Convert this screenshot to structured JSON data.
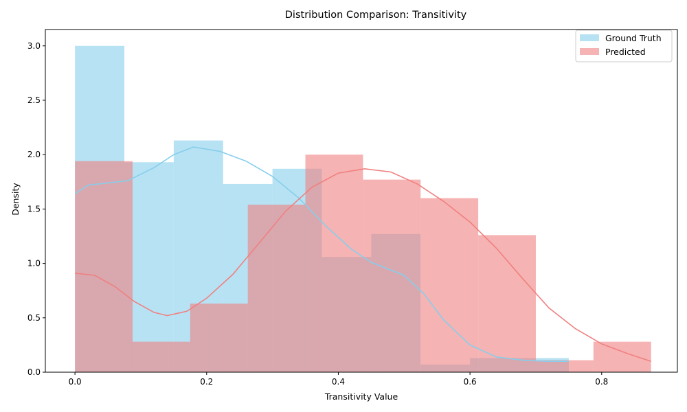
{
  "chart_data": {
    "type": "histogram",
    "title": "Distribution Comparison: Transitivity",
    "xlabel": "Transitivity Value",
    "ylabel": "Density",
    "xlim": [
      -0.045,
      0.915
    ],
    "ylim": [
      0,
      3.15
    ],
    "xticks": [
      0.0,
      0.2,
      0.4,
      0.6,
      0.8
    ],
    "xtick_labels": [
      "0.0",
      "0.2",
      "0.4",
      "0.6",
      "0.8"
    ],
    "yticks": [
      0.0,
      0.5,
      1.0,
      1.5,
      2.0,
      2.5,
      3.0
    ],
    "ytick_labels": [
      "0.0",
      "0.5",
      "1.0",
      "1.5",
      "2.0",
      "2.5",
      "3.0"
    ],
    "grid": false,
    "legend_position": "top-right",
    "series": [
      {
        "name": "Ground Truth",
        "color": "#87ceeb",
        "bin_edges": [
          0.0,
          0.075,
          0.15,
          0.225,
          0.3,
          0.375,
          0.45,
          0.525,
          0.6,
          0.675,
          0.75
        ],
        "densities": [
          3.0,
          1.93,
          2.13,
          1.73,
          1.87,
          1.06,
          1.27,
          0.07,
          0.13,
          0.13
        ],
        "kde": [
          [
            0.0,
            1.64
          ],
          [
            0.02,
            1.72
          ],
          [
            0.05,
            1.74
          ],
          [
            0.08,
            1.76
          ],
          [
            0.12,
            1.88
          ],
          [
            0.15,
            2.0
          ],
          [
            0.18,
            2.07
          ],
          [
            0.22,
            2.03
          ],
          [
            0.26,
            1.94
          ],
          [
            0.3,
            1.8
          ],
          [
            0.34,
            1.6
          ],
          [
            0.38,
            1.35
          ],
          [
            0.42,
            1.13
          ],
          [
            0.45,
            1.01
          ],
          [
            0.5,
            0.89
          ],
          [
            0.53,
            0.72
          ],
          [
            0.56,
            0.48
          ],
          [
            0.6,
            0.25
          ],
          [
            0.64,
            0.14
          ],
          [
            0.68,
            0.11
          ],
          [
            0.72,
            0.1
          ],
          [
            0.75,
            0.1
          ]
        ]
      },
      {
        "name": "Predicted",
        "color": "#f08080",
        "bin_edges": [
          0.0,
          0.0875,
          0.175,
          0.2625,
          0.35,
          0.4375,
          0.525,
          0.6125,
          0.7,
          0.7875,
          0.875
        ],
        "densities": [
          1.94,
          0.28,
          0.63,
          1.54,
          2.0,
          1.77,
          1.6,
          1.26,
          0.11,
          0.28
        ],
        "kde": [
          [
            0.0,
            0.91
          ],
          [
            0.03,
            0.89
          ],
          [
            0.06,
            0.79
          ],
          [
            0.09,
            0.65
          ],
          [
            0.12,
            0.55
          ],
          [
            0.14,
            0.52
          ],
          [
            0.17,
            0.56
          ],
          [
            0.2,
            0.68
          ],
          [
            0.24,
            0.9
          ],
          [
            0.28,
            1.19
          ],
          [
            0.32,
            1.48
          ],
          [
            0.36,
            1.7
          ],
          [
            0.4,
            1.83
          ],
          [
            0.44,
            1.87
          ],
          [
            0.48,
            1.84
          ],
          [
            0.52,
            1.73
          ],
          [
            0.56,
            1.57
          ],
          [
            0.6,
            1.38
          ],
          [
            0.64,
            1.14
          ],
          [
            0.68,
            0.86
          ],
          [
            0.72,
            0.59
          ],
          [
            0.76,
            0.4
          ],
          [
            0.8,
            0.26
          ],
          [
            0.84,
            0.17
          ],
          [
            0.875,
            0.1
          ]
        ]
      }
    ]
  }
}
